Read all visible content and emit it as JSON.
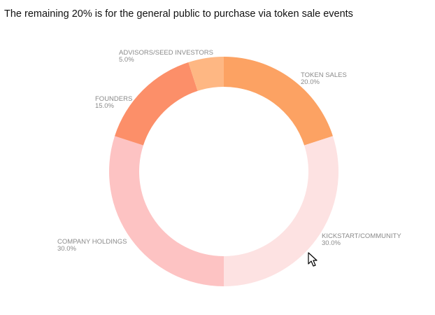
{
  "caption": "The remaining 20% is for the general public to purchase via token sale events",
  "chart_data": {
    "type": "pie",
    "donut": true,
    "start": "12 o'clock",
    "direction": "clockwise",
    "slices": [
      {
        "label": "TOKEN SALES",
        "percent_label": "20.0%",
        "value": 20,
        "color": "#fca263"
      },
      {
        "label": "KICKSTART/COMMUNITY",
        "percent_label": "30.0%",
        "value": 30,
        "color": "#fde2e2"
      },
      {
        "label": "COMPANY HOLDINGS",
        "percent_label": "30.0%",
        "value": 30,
        "color": "#fdc3c3"
      },
      {
        "label": "FOUNDERS",
        "percent_label": "15.0%",
        "value": 15,
        "color": "#fc8f69"
      },
      {
        "label": "ADVISORS/SEED INVESTORS",
        "percent_label": "5.0%",
        "value": 5,
        "color": "#feb783"
      }
    ]
  }
}
